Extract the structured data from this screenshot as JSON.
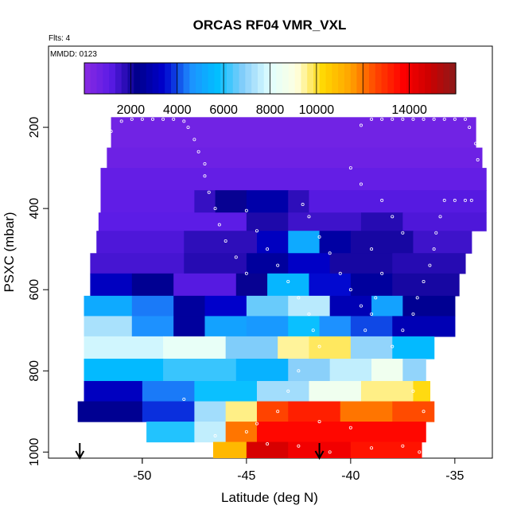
{
  "chart_data": {
    "type": "heatmap",
    "title": "ORCAS RF04 VMR_VXL",
    "subtitle_left": "Flts: 4",
    "subtitle_inner": "MMDD: 0123",
    "xlabel": "Latitude (deg N)",
    "ylabel": "PSXC (mbar)",
    "xlim": [
      -54.5,
      -33.2
    ],
    "ylim": [
      1015,
      0
    ],
    "x_ticks": [
      -50,
      -45,
      -40,
      -35
    ],
    "x_tick_labels": [
      "-50",
      "-45",
      "-40",
      "-35"
    ],
    "y_ticks": [
      200,
      400,
      600,
      800,
      1000
    ],
    "y_tick_labels": [
      "200",
      "400",
      "600",
      "800",
      "1000"
    ],
    "colorbar": {
      "range": [
        0,
        16000
      ],
      "tick_values": [
        2000,
        4000,
        6000,
        8000,
        10000,
        14000
      ],
      "tick_labels": [
        "2000",
        "4000",
        "6000",
        "8000",
        "10000",
        "14000"
      ],
      "colors": [
        "#8a2be2",
        "#5a1be6",
        "#00008b",
        "#0000cd",
        "#1e90ff",
        "#00bfff",
        "#87cefa",
        "#e0ffff",
        "#ffffe0",
        "#ffd700",
        "#ffa500",
        "#ff4500",
        "#ff0000",
        "#cc0000",
        "#8b1a1a"
      ]
    },
    "grid": false,
    "bands": [
      {
        "p_top": 175,
        "p_bot": 250,
        "segments": [
          {
            "x0": -51.5,
            "x1": -34.0,
            "v": 600
          }
        ]
      },
      {
        "p_top": 250,
        "p_bot": 300,
        "segments": [
          {
            "x0": -51.7,
            "x1": -33.7,
            "v": 700
          }
        ]
      },
      {
        "p_top": 300,
        "p_bot": 355,
        "segments": [
          {
            "x0": -52.0,
            "x1": -33.5,
            "v": 900
          }
        ]
      },
      {
        "p_top": 355,
        "p_bot": 410,
        "segments": [
          {
            "x0": -52.0,
            "x1": -47.5,
            "v": 1000
          },
          {
            "x0": -47.5,
            "x1": -46.5,
            "v": 1600
          },
          {
            "x0": -46.5,
            "x1": -45.0,
            "v": 2200
          },
          {
            "x0": -45.0,
            "x1": -43.0,
            "v": 2800
          },
          {
            "x0": -43.0,
            "x1": -42.0,
            "v": 1700
          },
          {
            "x0": -42.0,
            "x1": -33.5,
            "v": 1200
          }
        ]
      },
      {
        "p_top": 410,
        "p_bot": 455,
        "segments": [
          {
            "x0": -52.1,
            "x1": -45.0,
            "v": 1100
          },
          {
            "x0": -45.0,
            "x1": -43.0,
            "v": 1900
          },
          {
            "x0": -43.0,
            "x1": -39.5,
            "v": 1500
          },
          {
            "x0": -39.5,
            "x1": -37.5,
            "v": 1800
          },
          {
            "x0": -37.5,
            "x1": -33.5,
            "v": 1300
          }
        ]
      },
      {
        "p_top": 455,
        "p_bot": 510,
        "segments": [
          {
            "x0": -52.2,
            "x1": -48.0,
            "v": 1300
          },
          {
            "x0": -48.0,
            "x1": -44.5,
            "v": 1700
          },
          {
            "x0": -44.5,
            "x1": -43.0,
            "v": 3200
          },
          {
            "x0": -43.0,
            "x1": -41.5,
            "v": 5200
          },
          {
            "x0": -41.5,
            "x1": -40.0,
            "v": 2700
          },
          {
            "x0": -40.0,
            "x1": -37.0,
            "v": 2000
          },
          {
            "x0": -37.0,
            "x1": -34.2,
            "v": 1500
          }
        ]
      },
      {
        "p_top": 510,
        "p_bot": 560,
        "segments": [
          {
            "x0": -52.5,
            "x1": -48.0,
            "v": 1400
          },
          {
            "x0": -48.0,
            "x1": -45.0,
            "v": 1800
          },
          {
            "x0": -45.0,
            "x1": -43.0,
            "v": 2600
          },
          {
            "x0": -43.0,
            "x1": -41.0,
            "v": 3300
          },
          {
            "x0": -41.0,
            "x1": -38.0,
            "v": 2000
          },
          {
            "x0": -38.0,
            "x1": -34.5,
            "v": 1800
          }
        ]
      },
      {
        "p_top": 560,
        "p_bot": 615,
        "segments": [
          {
            "x0": -52.5,
            "x1": -50.5,
            "v": 3200
          },
          {
            "x0": -50.5,
            "x1": -48.5,
            "v": 2400
          },
          {
            "x0": -48.5,
            "x1": -45.5,
            "v": 1200
          },
          {
            "x0": -45.5,
            "x1": -44.0,
            "v": 2200
          },
          {
            "x0": -44.0,
            "x1": -42.0,
            "v": 5500
          },
          {
            "x0": -42.0,
            "x1": -40.0,
            "v": 3500
          },
          {
            "x0": -40.0,
            "x1": -38.0,
            "v": 2600
          },
          {
            "x0": -38.0,
            "x1": -34.8,
            "v": 2000
          }
        ]
      },
      {
        "p_top": 615,
        "p_bot": 665,
        "segments": [
          {
            "x0": -52.8,
            "x1": -50.5,
            "v": 5200
          },
          {
            "x0": -50.5,
            "x1": -48.5,
            "v": 4400
          },
          {
            "x0": -48.5,
            "x1": -47.0,
            "v": 2600
          },
          {
            "x0": -47.0,
            "x1": -45.0,
            "v": 3400
          },
          {
            "x0": -45.0,
            "x1": -43.0,
            "v": 6600
          },
          {
            "x0": -43.0,
            "x1": -41.0,
            "v": 7500
          },
          {
            "x0": -41.0,
            "x1": -39.0,
            "v": 3000
          },
          {
            "x0": -39.0,
            "x1": -37.5,
            "v": 5000
          },
          {
            "x0": -37.5,
            "x1": -35.0,
            "v": 2400
          }
        ]
      },
      {
        "p_top": 665,
        "p_bot": 715,
        "segments": [
          {
            "x0": -52.8,
            "x1": -50.5,
            "v": 7300
          },
          {
            "x0": -50.5,
            "x1": -48.5,
            "v": 4600
          },
          {
            "x0": -48.5,
            "x1": -47.0,
            "v": 2600
          },
          {
            "x0": -47.0,
            "x1": -45.0,
            "v": 5000
          },
          {
            "x0": -45.0,
            "x1": -43.0,
            "v": 4800
          },
          {
            "x0": -43.0,
            "x1": -41.5,
            "v": 5800
          },
          {
            "x0": -41.5,
            "x1": -40.0,
            "v": 4600
          },
          {
            "x0": -40.0,
            "x1": -38.0,
            "v": 4000
          },
          {
            "x0": -38.0,
            "x1": -35.0,
            "v": 3000
          }
        ]
      },
      {
        "p_top": 715,
        "p_bot": 770,
        "segments": [
          {
            "x0": -52.8,
            "x1": -49.0,
            "v": 7800
          },
          {
            "x0": -49.0,
            "x1": -46.0,
            "v": 8300
          },
          {
            "x0": -46.0,
            "x1": -43.5,
            "v": 6800
          },
          {
            "x0": -43.5,
            "x1": -42.0,
            "v": 9500
          },
          {
            "x0": -42.0,
            "x1": -40.0,
            "v": 9800
          },
          {
            "x0": -40.0,
            "x1": -38.0,
            "v": 7000
          },
          {
            "x0": -38.0,
            "x1": -36.0,
            "v": 5600
          }
        ]
      },
      {
        "p_top": 770,
        "p_bot": 825,
        "segments": [
          {
            "x0": -52.8,
            "x1": -49.0,
            "v": 5600
          },
          {
            "x0": -49.0,
            "x1": -45.5,
            "v": 6200
          },
          {
            "x0": -45.5,
            "x1": -43.0,
            "v": 5400
          },
          {
            "x0": -43.0,
            "x1": -41.0,
            "v": 6900
          },
          {
            "x0": -41.0,
            "x1": -39.0,
            "v": 7600
          },
          {
            "x0": -39.0,
            "x1": -37.5,
            "v": 8600
          },
          {
            "x0": -37.5,
            "x1": -36.4,
            "v": 7000
          }
        ]
      },
      {
        "p_top": 825,
        "p_bot": 875,
        "segments": [
          {
            "x0": -52.8,
            "x1": -50.0,
            "v": 3200
          },
          {
            "x0": -50.0,
            "x1": -47.5,
            "v": 4400
          },
          {
            "x0": -47.5,
            "x1": -44.5,
            "v": 5800
          },
          {
            "x0": -44.5,
            "x1": -42.0,
            "v": 7200
          },
          {
            "x0": -42.0,
            "x1": -39.5,
            "v": 8600
          },
          {
            "x0": -39.5,
            "x1": -37.0,
            "v": 9600
          },
          {
            "x0": -37.0,
            "x1": -36.2,
            "v": 10200
          }
        ]
      },
      {
        "p_top": 875,
        "p_bot": 925,
        "segments": [
          {
            "x0": -53.1,
            "x1": -50.0,
            "v": 2400
          },
          {
            "x0": -50.0,
            "x1": -47.5,
            "v": 3800
          },
          {
            "x0": -47.5,
            "x1": -46.0,
            "v": 7200
          },
          {
            "x0": -46.0,
            "x1": -44.5,
            "v": 9600
          },
          {
            "x0": -44.5,
            "x1": -43.0,
            "v": 12600
          },
          {
            "x0": -43.0,
            "x1": -40.5,
            "v": 13200
          },
          {
            "x0": -40.5,
            "x1": -38.0,
            "v": 12000
          },
          {
            "x0": -38.0,
            "x1": -36.0,
            "v": 12500
          }
        ]
      },
      {
        "p_top": 925,
        "p_bot": 975,
        "segments": [
          {
            "x0": -49.8,
            "x1": -47.5,
            "v": 6000
          },
          {
            "x0": -47.5,
            "x1": -46.0,
            "v": 7600
          },
          {
            "x0": -46.0,
            "x1": -44.5,
            "v": 12000
          },
          {
            "x0": -44.5,
            "x1": -36.4,
            "v": 13600
          }
        ]
      },
      {
        "p_top": 975,
        "p_bot": 1015,
        "segments": [
          {
            "x0": -46.6,
            "x1": -45.0,
            "v": 11000
          },
          {
            "x0": -45.0,
            "x1": -43.0,
            "v": 14600
          },
          {
            "x0": -43.0,
            "x1": -40.0,
            "v": 14000
          },
          {
            "x0": -40.0,
            "x1": -36.6,
            "v": 13400
          }
        ]
      }
    ],
    "track_points": [
      [
        -51.0,
        185
      ],
      [
        -50.5,
        180
      ],
      [
        -50.0,
        180
      ],
      [
        -49.5,
        180
      ],
      [
        -49.0,
        180
      ],
      [
        -48.5,
        180
      ],
      [
        -48.0,
        185
      ],
      [
        -47.8,
        200
      ],
      [
        -47.5,
        230
      ],
      [
        -47.3,
        260
      ],
      [
        -47.0,
        290
      ],
      [
        -47.0,
        320
      ],
      [
        -46.8,
        360
      ],
      [
        -46.5,
        400
      ],
      [
        -46.3,
        440
      ],
      [
        -46.0,
        480
      ],
      [
        -45.5,
        520
      ],
      [
        -45.0,
        560
      ],
      [
        -52.0,
        285
      ],
      [
        -52.2,
        330
      ],
      [
        -51.8,
        250
      ],
      [
        -52.5,
        480
      ],
      [
        -52.8,
        520
      ],
      [
        -53.0,
        560
      ],
      [
        -52.6,
        430
      ],
      [
        -52.2,
        395
      ],
      [
        -51.5,
        210
      ],
      [
        -45.0,
        405
      ],
      [
        -44.5,
        455
      ],
      [
        -44.0,
        500
      ],
      [
        -43.5,
        540
      ],
      [
        -43.0,
        580
      ],
      [
        -42.5,
        620
      ],
      [
        -42.0,
        660
      ],
      [
        -41.8,
        700
      ],
      [
        -41.5,
        740
      ],
      [
        -42.3,
        390
      ],
      [
        -42.0,
        420
      ],
      [
        -41.5,
        470
      ],
      [
        -41.0,
        510
      ],
      [
        -40.5,
        560
      ],
      [
        -40.0,
        600
      ],
      [
        -39.5,
        640
      ],
      [
        -39.5,
        195
      ],
      [
        -39.0,
        180
      ],
      [
        -38.5,
        180
      ],
      [
        -38.0,
        180
      ],
      [
        -37.5,
        180
      ],
      [
        -37.0,
        180
      ],
      [
        -36.5,
        180
      ],
      [
        -36.0,
        180
      ],
      [
        -35.5,
        180
      ],
      [
        -35.0,
        180
      ],
      [
        -34.5,
        180
      ],
      [
        -34.3,
        200
      ],
      [
        -34.0,
        240
      ],
      [
        -33.9,
        280
      ],
      [
        -34.2,
        380
      ],
      [
        -34.5,
        380
      ],
      [
        -35.0,
        380
      ],
      [
        -35.5,
        380
      ],
      [
        -35.7,
        420
      ],
      [
        -35.9,
        460
      ],
      [
        -36.0,
        500
      ],
      [
        -36.2,
        540
      ],
      [
        -36.5,
        580
      ],
      [
        -36.8,
        620
      ],
      [
        -37.0,
        660
      ],
      [
        -37.5,
        700
      ],
      [
        -38.0,
        740
      ],
      [
        -40.0,
        300
      ],
      [
        -39.5,
        340
      ],
      [
        -38.5,
        380
      ],
      [
        -38.0,
        420
      ],
      [
        -37.5,
        460
      ],
      [
        -39.0,
        500
      ],
      [
        -38.5,
        560
      ],
      [
        -38.8,
        620
      ],
      [
        -39.0,
        660
      ],
      [
        -39.3,
        700
      ],
      [
        -42.5,
        800
      ],
      [
        -43.0,
        850
      ],
      [
        -43.5,
        900
      ],
      [
        -44.5,
        930
      ],
      [
        -45.0,
        950
      ],
      [
        -44.0,
        980
      ],
      [
        -42.5,
        985
      ],
      [
        -41.0,
        1000
      ],
      [
        -39.0,
        990
      ],
      [
        -37.5,
        985
      ],
      [
        -36.7,
        1000
      ],
      [
        -37.0,
        850
      ],
      [
        -36.5,
        900
      ],
      [
        -41.5,
        925
      ],
      [
        -40.0,
        940
      ],
      [
        -48.0,
        870
      ],
      [
        -46.5,
        960
      ]
    ],
    "arrows_x": [
      -53.0,
      -41.5
    ]
  }
}
